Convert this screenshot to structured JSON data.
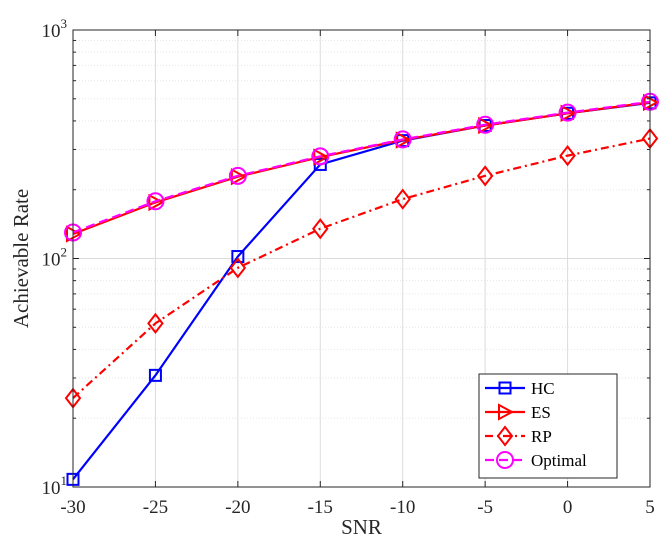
{
  "chart_data": {
    "type": "line",
    "xlabel": "SNR",
    "ylabel": "Achievable Rate",
    "x": [
      -30,
      -25,
      -20,
      -15,
      -10,
      -5,
      0,
      5
    ],
    "xlim": [
      -30,
      5
    ],
    "ylim": [
      10,
      1000
    ],
    "yscale": "log",
    "grid": true,
    "legend_position": "bottom-right",
    "x_ticks": [
      "-30",
      "-25",
      "-20",
      "-15",
      "-10",
      "-5",
      "0",
      "5"
    ],
    "y_ticks": [
      {
        "base": "10",
        "exp": "1"
      },
      {
        "base": "10",
        "exp": "2"
      },
      {
        "base": "10",
        "exp": "3"
      }
    ],
    "series": [
      {
        "name": "HC",
        "color": "#0000ff",
        "dash": "solid",
        "marker": "square",
        "values": [
          10.8,
          30.8,
          102,
          258,
          328,
          382,
          432,
          480
        ]
      },
      {
        "name": "ES",
        "color": "#ff0000",
        "dash": "solid",
        "marker": "triangle-right",
        "values": [
          128,
          176,
          228,
          278,
          330,
          382,
          432,
          482
        ]
      },
      {
        "name": "RP",
        "color": "#ff0000",
        "dash": "dashdot",
        "marker": "diamond",
        "values": [
          24.5,
          52,
          91,
          135,
          182,
          230,
          282,
          335
        ]
      },
      {
        "name": "Optimal",
        "color": "#ff00ff",
        "dash": "dashed",
        "marker": "circle",
        "values": [
          130,
          178,
          230,
          280,
          332,
          385,
          435,
          485
        ]
      }
    ]
  }
}
